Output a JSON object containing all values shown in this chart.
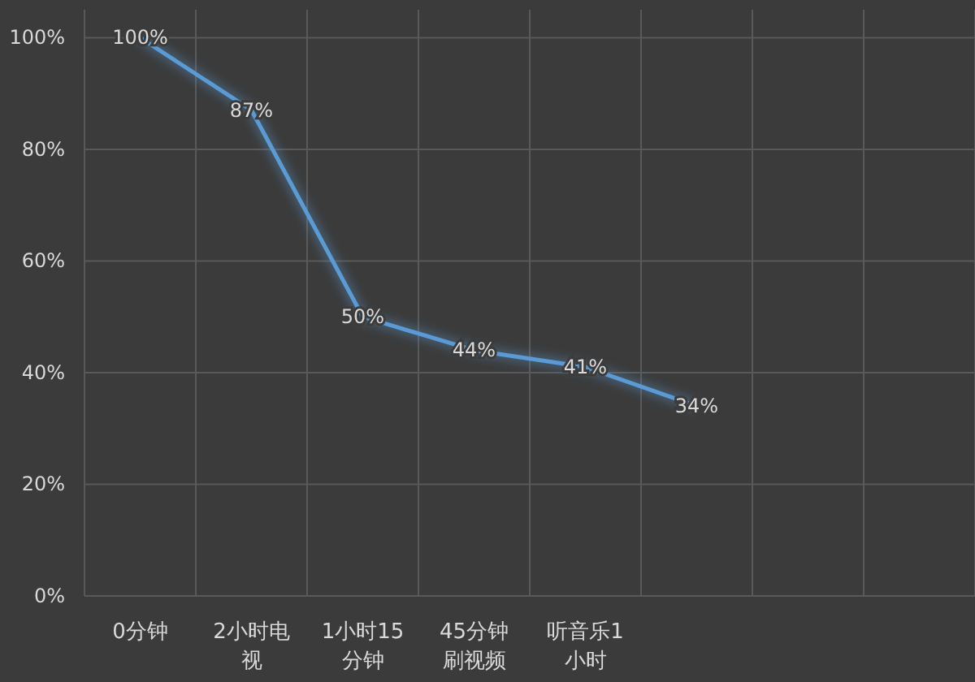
{
  "chart_data": {
    "type": "line",
    "categories": [
      "0分钟",
      "2小时电视",
      "1小时15分钟",
      "45分钟刷视频",
      "听音乐1小时",
      null,
      null,
      null
    ],
    "series": [
      {
        "color": "#5b9bd5",
        "values": [
          100,
          87,
          50,
          44,
          41,
          34,
          null,
          null
        ],
        "value_labels": [
          "100%",
          "87%",
          "50%",
          "44%",
          "41%",
          "34%",
          null,
          null
        ]
      }
    ],
    "ylim": [
      0,
      105
    ],
    "yticks": [
      {
        "value": 0,
        "label": "0%"
      },
      {
        "value": 20,
        "label": "20%"
      },
      {
        "value": 40,
        "label": "40%"
      },
      {
        "value": 60,
        "label": "60%"
      },
      {
        "value": 80,
        "label": "80%"
      },
      {
        "value": 100,
        "label": "100%"
      }
    ],
    "grid": true,
    "marker": "none",
    "line_style": "solid"
  }
}
